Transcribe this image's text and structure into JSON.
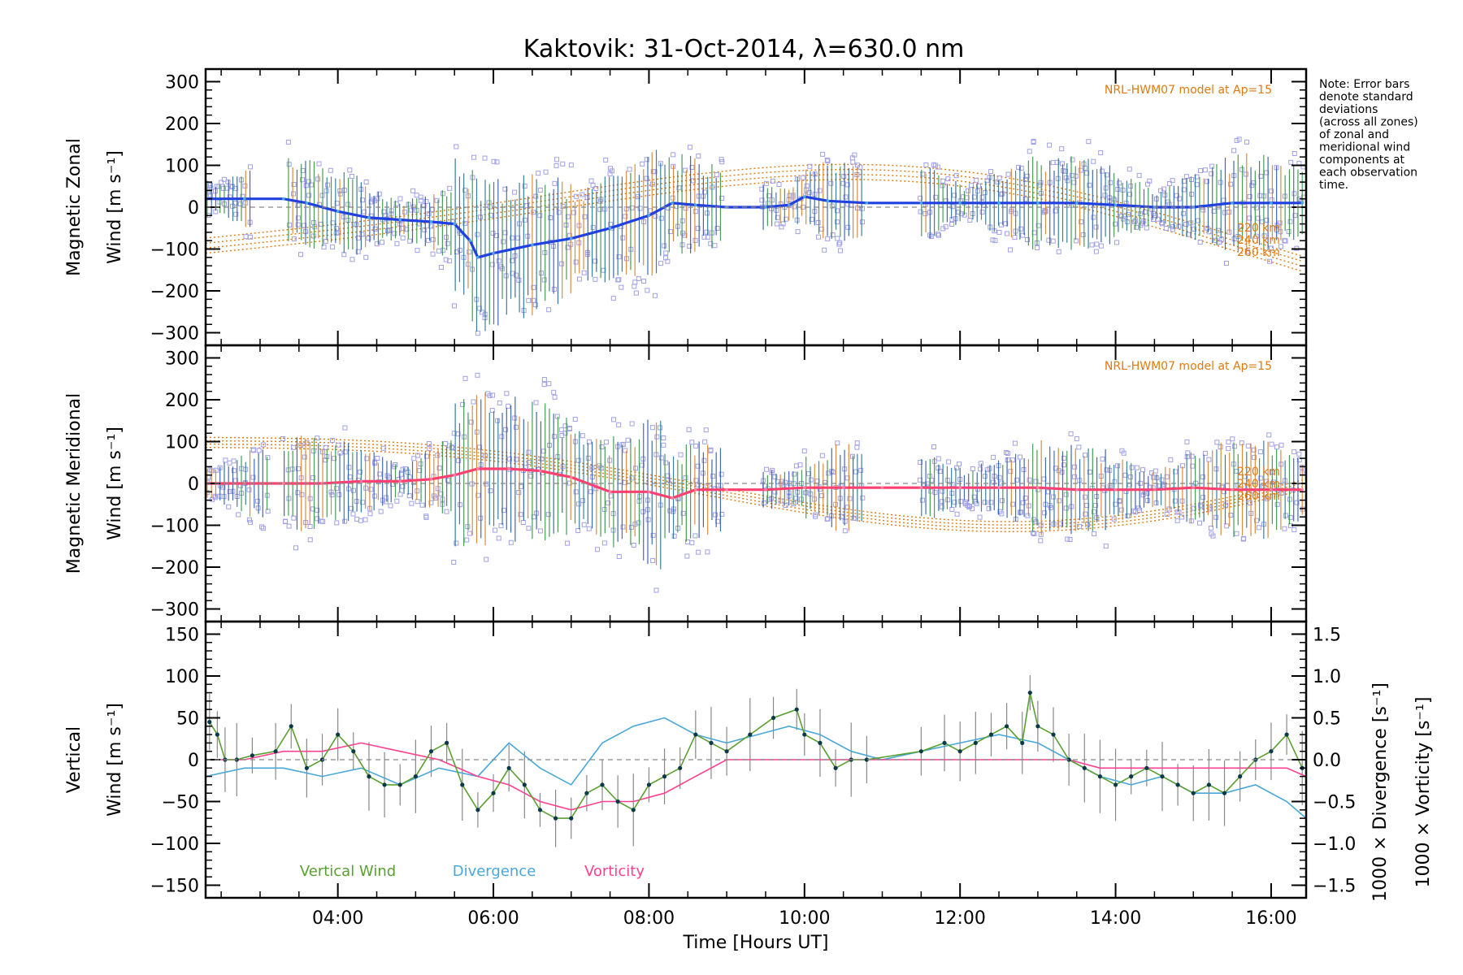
{
  "title": "Kaktovik: 31-Oct-2014, λ=630.0 nm",
  "note_lines": [
    "Note: Error bars",
    "denote standard",
    "deviations",
    "(across all zones)",
    "of zonal and",
    "meridional wind",
    "components at",
    "each observation",
    "time."
  ],
  "colors": {
    "zonal": "#2040e0",
    "zonal_light": "#4aa8e0",
    "meridional": "#ff4070",
    "vertical": "#5aa030",
    "divergence": "#4aa8d8",
    "vorticity": "#ff4090",
    "model": "#e07a10",
    "scatter": "#a0a0e8",
    "errbar": "#1a6a6a"
  },
  "chart_data": [
    {
      "type": "line",
      "name": "zonal-panel",
      "ylabel": "Magnetic Zonal",
      "ylabel2": "Wind [m s⁻¹]",
      "ylim": [
        -330,
        330
      ],
      "yticks": [
        -300,
        -200,
        -100,
        0,
        100,
        200,
        300
      ],
      "ytick_labels": [
        "−300",
        "−200",
        "−100",
        "0",
        "100",
        "200",
        "300"
      ],
      "model_label": "NRL-HWM07 model at Ap=15",
      "altitude_labels": [
        "220 km",
        "240 km",
        "260 km"
      ],
      "series": [
        {
          "x": [
            2.3,
            2.8,
            3.3,
            3.6,
            4.0,
            4.4,
            4.8,
            5.2,
            5.5,
            5.7,
            5.8,
            6.0,
            6.5,
            7.0,
            7.5,
            8.0,
            8.3,
            8.6,
            9.0,
            9.5,
            9.8,
            10.0,
            10.3,
            10.8,
            11.5,
            12.0,
            12.5,
            13.0,
            13.5,
            14.0,
            14.5,
            15.0,
            15.5,
            16.0,
            16.4
          ],
          "y": [
            20,
            20,
            20,
            10,
            -10,
            -25,
            -30,
            -35,
            -40,
            -80,
            -120,
            -110,
            -90,
            -75,
            -50,
            -20,
            10,
            5,
            0,
            0,
            5,
            25,
            15,
            10,
            10,
            10,
            10,
            10,
            10,
            5,
            0,
            0,
            10,
            10,
            10
          ]
        }
      ]
    },
    {
      "type": "line",
      "name": "meridional-panel",
      "ylabel": "Magnetic Meridional",
      "ylabel2": "Wind [m s⁻¹]",
      "ylim": [
        -330,
        330
      ],
      "yticks": [
        -300,
        -200,
        -100,
        0,
        100,
        200,
        300
      ],
      "ytick_labels": [
        "−300",
        "−200",
        "−100",
        "0",
        "100",
        "200",
        "300"
      ],
      "model_label": "NRL-HWM07 model at Ap=15",
      "altitude_labels": [
        "220 km",
        "240 km",
        "260 km"
      ],
      "series": [
        {
          "x": [
            2.3,
            2.8,
            3.3,
            3.8,
            4.3,
            4.8,
            5.2,
            5.5,
            5.8,
            6.2,
            6.6,
            7.0,
            7.5,
            8.0,
            8.3,
            8.6,
            9.0,
            9.5,
            10.0,
            10.5,
            11.0,
            11.5,
            12.0,
            12.5,
            13.0,
            13.5,
            14.0,
            14.5,
            15.0,
            15.5,
            16.0,
            16.4
          ],
          "y": [
            0,
            0,
            0,
            0,
            5,
            5,
            10,
            20,
            35,
            35,
            30,
            15,
            -20,
            -20,
            -35,
            -15,
            -15,
            -15,
            -10,
            -10,
            -10,
            -10,
            -10,
            -10,
            -10,
            -15,
            -15,
            -15,
            -10,
            -15,
            -15,
            -15
          ]
        }
      ]
    },
    {
      "type": "line",
      "name": "vertical-panel",
      "ylabel": "Vertical",
      "ylabel2": "Wind [m s⁻¹]",
      "ylim": [
        -165,
        165
      ],
      "yticks": [
        -150,
        -100,
        -50,
        0,
        50,
        100,
        150
      ],
      "ytick_labels": [
        "−150",
        "−100",
        "−50",
        "0",
        "50",
        "100",
        "150"
      ],
      "y2label_div": "1000 × Divergence [s⁻¹]",
      "y2label_vort": "1000 × Vorticity [s⁻¹]",
      "y2lim": [
        -1.65,
        1.65
      ],
      "y2ticks": [
        -1.5,
        -1.0,
        -0.5,
        0.0,
        0.5,
        1.0,
        1.5
      ],
      "y2tick_labels": [
        "−1.5",
        "−1.0",
        "−0.5",
        "0.0",
        "0.5",
        "1.0",
        "1.5"
      ],
      "xlim": [
        2.3,
        16.45
      ],
      "xticks": [
        4,
        6,
        8,
        10,
        12,
        14,
        16
      ],
      "xtick_labels": [
        "04:00",
        "06:00",
        "08:00",
        "10:00",
        "12:00",
        "14:00",
        "16:00"
      ],
      "xlabel": "Time [Hours UT]",
      "legend": [
        "Vertical Wind",
        "Divergence",
        "Vorticity"
      ],
      "series": [
        {
          "name": "Vertical Wind",
          "x": [
            2.35,
            2.45,
            2.55,
            2.7,
            2.9,
            3.2,
            3.4,
            3.6,
            3.8,
            4.0,
            4.2,
            4.4,
            4.6,
            4.8,
            5.0,
            5.2,
            5.4,
            5.6,
            5.8,
            6.0,
            6.2,
            6.4,
            6.6,
            6.8,
            7.0,
            7.2,
            7.4,
            7.6,
            7.8,
            8.0,
            8.2,
            8.4,
            8.6,
            8.8,
            9.0,
            9.3,
            9.6,
            9.9,
            10.0,
            10.2,
            10.4,
            10.6,
            10.8,
            11.5,
            11.8,
            12.0,
            12.2,
            12.4,
            12.6,
            12.8,
            12.9,
            13.0,
            13.2,
            13.4,
            13.6,
            13.8,
            14.0,
            14.2,
            14.4,
            14.6,
            14.8,
            15.0,
            15.2,
            15.4,
            15.6,
            15.8,
            16.0,
            16.2,
            16.4
          ],
          "y": [
            45,
            30,
            0,
            0,
            5,
            10,
            40,
            -10,
            0,
            30,
            10,
            -20,
            -30,
            -30,
            -20,
            10,
            20,
            -30,
            -60,
            -40,
            -10,
            -30,
            -60,
            -70,
            -70,
            -40,
            -30,
            -50,
            -60,
            -30,
            -20,
            -10,
            30,
            20,
            10,
            30,
            50,
            60,
            30,
            20,
            -10,
            0,
            0,
            10,
            20,
            10,
            20,
            30,
            40,
            20,
            80,
            40,
            30,
            0,
            -10,
            -20,
            -30,
            -20,
            -10,
            -20,
            -30,
            -40,
            -30,
            -40,
            -20,
            0,
            10,
            30,
            -10
          ]
        },
        {
          "name": "Divergence",
          "x": [
            2.3,
            2.8,
            3.3,
            3.8,
            4.3,
            4.8,
            5.3,
            5.8,
            6.2,
            6.6,
            7.0,
            7.4,
            7.8,
            8.2,
            8.6,
            9.0,
            9.4,
            9.8,
            10.2,
            10.6,
            11.0,
            11.5,
            12.0,
            12.5,
            13.0,
            13.4,
            13.8,
            14.2,
            14.6,
            15.0,
            15.4,
            15.8,
            16.2,
            16.45
          ],
          "y": [
            -0.2,
            -0.1,
            -0.1,
            -0.2,
            -0.1,
            -0.3,
            -0.1,
            -0.2,
            0.2,
            -0.1,
            -0.3,
            0.2,
            0.4,
            0.5,
            0.3,
            0.2,
            0.3,
            0.4,
            0.3,
            0.1,
            0.0,
            0.1,
            0.2,
            0.3,
            0.2,
            0.0,
            -0.2,
            -0.3,
            -0.2,
            -0.4,
            -0.4,
            -0.3,
            -0.5,
            -0.7
          ]
        },
        {
          "name": "Vorticity",
          "x": [
            2.3,
            2.8,
            3.3,
            3.8,
            4.3,
            4.8,
            5.3,
            5.8,
            6.2,
            6.6,
            7.0,
            7.4,
            7.8,
            8.2,
            8.6,
            9.0,
            9.4,
            9.8,
            10.2,
            10.6,
            11.0,
            11.5,
            12.0,
            12.5,
            13.0,
            13.4,
            13.8,
            14.2,
            14.6,
            15.0,
            15.4,
            15.8,
            16.2,
            16.45
          ],
          "y": [
            0.0,
            0.0,
            0.1,
            0.1,
            0.2,
            0.1,
            0.0,
            -0.2,
            -0.3,
            -0.5,
            -0.6,
            -0.5,
            -0.5,
            -0.4,
            -0.2,
            0.0,
            0.0,
            0.0,
            0.0,
            0.0,
            0.0,
            0.0,
            0.0,
            0.0,
            0.0,
            0.0,
            -0.1,
            -0.1,
            -0.1,
            -0.1,
            -0.1,
            -0.1,
            -0.1,
            -0.2
          ]
        }
      ]
    }
  ]
}
